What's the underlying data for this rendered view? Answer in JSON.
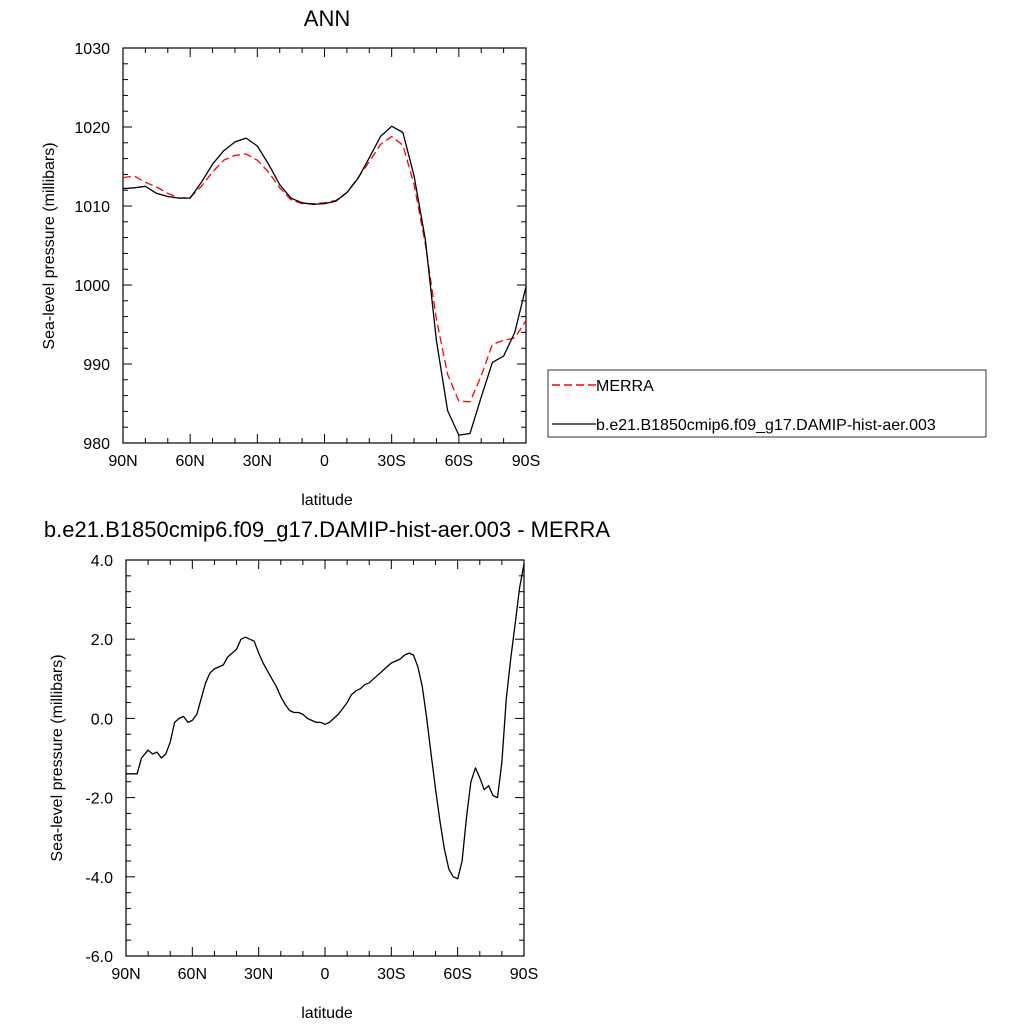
{
  "chart_data": [
    {
      "type": "line",
      "title": "ANN",
      "xlabel": "latitude",
      "ylabel": "Sea-level pressure (millibars)",
      "xlim": [
        90,
        -90
      ],
      "ylim": [
        980,
        1030
      ],
      "x_ticks": [
        90,
        60,
        30,
        0,
        -30,
        -60,
        -90
      ],
      "x_tick_labels": [
        "90N",
        "60N",
        "30N",
        "0",
        "30S",
        "60S",
        "90S"
      ],
      "y_ticks": [
        980,
        990,
        1000,
        1010,
        1020,
        1030
      ],
      "y_tick_labels": [
        "980",
        "990",
        "1000",
        "1010",
        "1020",
        "1030"
      ],
      "legend_position": "right",
      "series": [
        {
          "name": "MERRA",
          "color": "#ff0000",
          "dash": "dashed",
          "x": [
            90,
            85,
            80,
            75,
            70,
            65,
            60,
            55,
            50,
            45,
            40,
            35,
            30,
            25,
            20,
            15,
            10,
            5,
            0,
            -5,
            -10,
            -15,
            -20,
            -25,
            -30,
            -35,
            -40,
            -45,
            -50,
            -55,
            -60,
            -65,
            -70,
            -75,
            -80,
            -85,
            -90
          ],
          "y": [
            1013.6,
            1013.8,
            1013.0,
            1012.4,
            1011.6,
            1011.0,
            1011.1,
            1012.5,
            1014.3,
            1015.8,
            1016.4,
            1016.6,
            1015.8,
            1014.3,
            1012.3,
            1010.8,
            1010.3,
            1010.3,
            1010.4,
            1010.7,
            1011.7,
            1013.6,
            1015.6,
            1017.8,
            1018.8,
            1017.7,
            1012.7,
            1005.2,
            995.7,
            988.7,
            985.3,
            985.2,
            988.5,
            992.5,
            993.0,
            993.3,
            995.5
          ]
        },
        {
          "name": "b.e21.B1850cmip6.f09_g17.DAMIP-hist-aer.003",
          "color": "#000000",
          "dash": "solid",
          "x": [
            90,
            85,
            80,
            75,
            70,
            65,
            60,
            55,
            50,
            45,
            40,
            35,
            30,
            25,
            20,
            15,
            10,
            5,
            0,
            -5,
            -10,
            -15,
            -20,
            -25,
            -30,
            -35,
            -40,
            -45,
            -50,
            -55,
            -60,
            -65,
            -70,
            -75,
            -80,
            -85,
            -90
          ],
          "y": [
            1012.2,
            1012.3,
            1012.5,
            1011.6,
            1011.2,
            1011.0,
            1011.0,
            1013.0,
            1015.3,
            1017.0,
            1018.1,
            1018.6,
            1017.6,
            1015.3,
            1012.7,
            1011.0,
            1010.4,
            1010.2,
            1010.3,
            1010.6,
            1011.7,
            1013.5,
            1016.1,
            1018.8,
            1020.1,
            1019.3,
            1013.8,
            1005.8,
            993.0,
            984.1,
            981.0,
            981.2,
            985.8,
            990.2,
            991.0,
            994.0,
            999.8
          ]
        }
      ]
    },
    {
      "type": "line",
      "title": "b.e21.B1850cmip6.f09_g17.DAMIP-hist-aer.003 - MERRA",
      "xlabel": "latitude",
      "ylabel": "Sea-level pressure (millibars)",
      "xlim": [
        90,
        -90
      ],
      "ylim": [
        -6,
        4
      ],
      "x_ticks": [
        90,
        60,
        30,
        0,
        -30,
        -60,
        -90
      ],
      "x_tick_labels": [
        "90N",
        "60N",
        "30N",
        "0",
        "30S",
        "60S",
        "90S"
      ],
      "y_ticks": [
        -6,
        -4,
        -2,
        0,
        2,
        4
      ],
      "y_tick_labels": [
        "-6.0",
        "-4.0",
        "-2.0",
        "0.0",
        "2.0",
        "4.0"
      ],
      "series": [
        {
          "color": "#000000",
          "dash": "solid",
          "x": [
            90,
            85,
            83,
            80,
            78,
            76,
            74,
            72,
            70,
            68,
            66,
            64,
            62,
            60,
            58,
            56,
            54,
            52,
            50,
            48,
            46,
            44,
            42,
            40,
            38,
            36,
            34,
            32,
            30,
            28,
            26,
            24,
            22,
            20,
            18,
            16,
            14,
            12,
            10,
            8,
            6,
            4,
            2,
            0,
            -2,
            -4,
            -6,
            -8,
            -10,
            -12,
            -14,
            -16,
            -18,
            -20,
            -22,
            -24,
            -26,
            -28,
            -30,
            -32,
            -34,
            -36,
            -38,
            -40,
            -42,
            -44,
            -46,
            -48,
            -50,
            -52,
            -54,
            -56,
            -58,
            -60,
            -62,
            -64,
            -66,
            -68,
            -70,
            -72,
            -74,
            -76,
            -78,
            -80,
            -82,
            -84,
            -86,
            -88,
            -90
          ],
          "y": [
            -1.4,
            -1.4,
            -1.0,
            -0.8,
            -0.9,
            -0.85,
            -1.0,
            -0.9,
            -0.6,
            -0.1,
            0.0,
            0.05,
            -0.1,
            -0.05,
            0.1,
            0.5,
            0.9,
            1.15,
            1.25,
            1.3,
            1.35,
            1.55,
            1.65,
            1.75,
            2.0,
            2.05,
            2.0,
            1.95,
            1.65,
            1.4,
            1.2,
            1.0,
            0.8,
            0.55,
            0.35,
            0.2,
            0.15,
            0.15,
            0.1,
            0.0,
            -0.05,
            -0.1,
            -0.1,
            -0.15,
            -0.1,
            0.0,
            0.1,
            0.25,
            0.4,
            0.6,
            0.7,
            0.75,
            0.85,
            0.9,
            1.0,
            1.1,
            1.2,
            1.3,
            1.4,
            1.45,
            1.5,
            1.6,
            1.65,
            1.6,
            1.3,
            0.8,
            0.0,
            -0.9,
            -1.8,
            -2.6,
            -3.3,
            -3.8,
            -4.0,
            -4.05,
            -3.6,
            -2.5,
            -1.6,
            -1.25,
            -1.5,
            -1.8,
            -1.7,
            -1.95,
            -2.0,
            -1.1,
            0.5,
            1.5,
            2.4,
            3.3,
            3.9
          ]
        }
      ]
    }
  ]
}
